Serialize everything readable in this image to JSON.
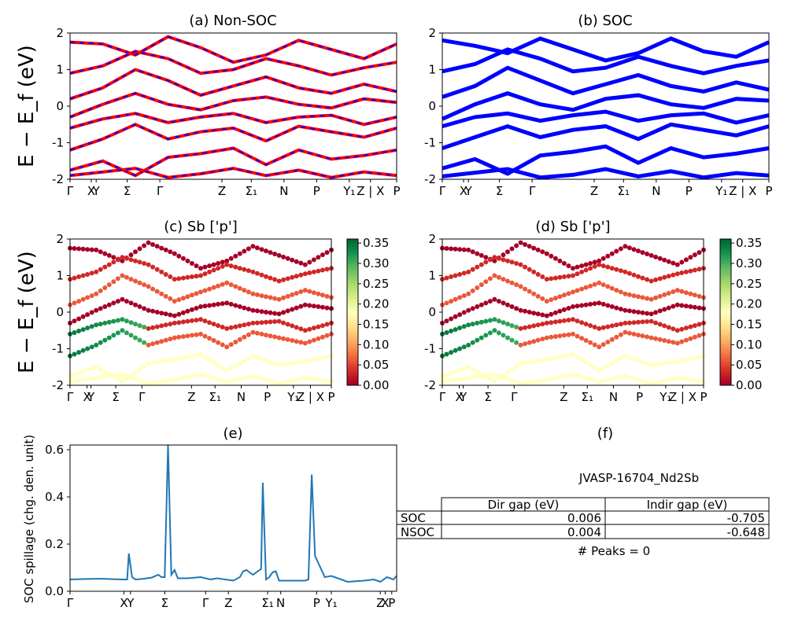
{
  "figure": {
    "id_label": "JVASP-16704_Nd2Sb",
    "peaks_text": "# Peaks = 0"
  },
  "colors": {
    "red": "#ff0000",
    "blue": "#0000ff",
    "spillage": "#1f77b4",
    "cmap": [
      "#a50026",
      "#d73027",
      "#f46d43",
      "#fdae61",
      "#fee08b",
      "#ffffbf",
      "#d9ef8b",
      "#a6d96a",
      "#66bd63",
      "#1a9850",
      "#006837"
    ]
  },
  "chart_data": [
    {
      "type": "line",
      "panel": "a",
      "title": "(a) Non-SOC",
      "ylabel": "E − E_f (eV)",
      "ylim": [
        -2,
        2
      ],
      "yticks": [
        -2,
        -1,
        0,
        1,
        2
      ],
      "kpath_labels": [
        "Γ",
        "X",
        "Y",
        "Σ",
        "Γ",
        "Z",
        "Σ₁",
        "N",
        "P",
        "Y₁",
        "Z | X",
        "P"
      ],
      "kpath_positions": [
        0,
        0.065,
        0.08,
        0.175,
        0.275,
        0.465,
        0.555,
        0.655,
        0.755,
        0.855,
        0.92,
        1.0
      ],
      "series": [
        {
          "values": [
            1.75,
            1.7,
            1.4,
            1.9,
            1.6,
            1.2,
            1.4,
            1.8,
            1.55,
            1.3,
            1.7
          ]
        },
        {
          "values": [
            0.9,
            1.1,
            1.5,
            1.3,
            0.9,
            1.0,
            1.3,
            1.1,
            0.85,
            1.05,
            1.2
          ]
        },
        {
          "values": [
            0.2,
            0.5,
            1.0,
            0.7,
            0.3,
            0.55,
            0.8,
            0.5,
            0.35,
            0.6,
            0.4
          ]
        },
        {
          "values": [
            -0.3,
            0.05,
            0.35,
            0.05,
            -0.1,
            0.15,
            0.25,
            0.05,
            -0.05,
            0.2,
            0.1
          ]
        },
        {
          "values": [
            -0.6,
            -0.35,
            -0.2,
            -0.45,
            -0.3,
            -0.2,
            -0.45,
            -0.3,
            -0.25,
            -0.5,
            -0.3
          ]
        },
        {
          "values": [
            -1.2,
            -0.9,
            -0.5,
            -0.9,
            -0.7,
            -0.6,
            -0.95,
            -0.55,
            -0.7,
            -0.85,
            -0.6
          ]
        },
        {
          "values": [
            -1.75,
            -1.5,
            -1.9,
            -1.4,
            -1.3,
            -1.15,
            -1.6,
            -1.2,
            -1.45,
            -1.35,
            -1.2
          ]
        },
        {
          "values": [
            -1.9,
            -1.8,
            -1.7,
            -1.95,
            -1.85,
            -1.7,
            -1.9,
            -1.75,
            -1.95,
            -1.8,
            -1.9
          ]
        }
      ]
    },
    {
      "type": "line",
      "panel": "b",
      "title": "(b) SOC",
      "ylim": [
        -2,
        2
      ],
      "yticks": [
        -2,
        -1,
        0,
        1,
        2
      ],
      "kpath_labels": [
        "Γ",
        "X",
        "Y",
        "Σ",
        "Γ",
        "Z",
        "Σ₁",
        "N",
        "P",
        "Y₁",
        "Z | X",
        "P"
      ],
      "kpath_positions": [
        0,
        0.065,
        0.08,
        0.175,
        0.275,
        0.465,
        0.555,
        0.655,
        0.755,
        0.855,
        0.92,
        1.0
      ],
      "series": [
        {
          "values": [
            1.8,
            1.65,
            1.45,
            1.85,
            1.55,
            1.25,
            1.45,
            1.85,
            1.5,
            1.35,
            1.75
          ]
        },
        {
          "values": [
            0.95,
            1.15,
            1.55,
            1.3,
            0.95,
            1.05,
            1.35,
            1.1,
            0.9,
            1.1,
            1.25
          ]
        },
        {
          "values": [
            0.25,
            0.55,
            1.05,
            0.7,
            0.35,
            0.6,
            0.85,
            0.55,
            0.4,
            0.65,
            0.45
          ]
        },
        {
          "values": [
            -0.35,
            0.05,
            0.35,
            0.05,
            -0.1,
            0.2,
            0.3,
            0.05,
            -0.05,
            0.2,
            0.15
          ]
        },
        {
          "values": [
            -0.55,
            -0.3,
            -0.2,
            -0.4,
            -0.25,
            -0.15,
            -0.4,
            -0.25,
            -0.2,
            -0.45,
            -0.25
          ]
        },
        {
          "values": [
            -1.15,
            -0.85,
            -0.55,
            -0.85,
            -0.65,
            -0.55,
            -0.9,
            -0.5,
            -0.65,
            -0.8,
            -0.55
          ]
        },
        {
          "values": [
            -1.7,
            -1.45,
            -1.85,
            -1.35,
            -1.25,
            -1.1,
            -1.55,
            -1.15,
            -1.4,
            -1.3,
            -1.15
          ]
        },
        {
          "values": [
            -1.92,
            -1.82,
            -1.72,
            -1.95,
            -1.88,
            -1.72,
            -1.92,
            -1.78,
            -1.95,
            -1.83,
            -1.9
          ]
        }
      ]
    },
    {
      "type": "scatter",
      "panel": "c",
      "title": "(c)  Sb ['p']",
      "ylabel": "E − E_f (eV)",
      "ylim": [
        -2,
        2
      ],
      "yticks": [
        -2,
        -1,
        0,
        1,
        2
      ],
      "colorbar": {
        "min": 0.0,
        "max": 0.36,
        "ticks": [
          "0.00",
          "0.05",
          "0.10",
          "0.15",
          "0.20",
          "0.25",
          "0.30",
          "0.35"
        ]
      },
      "kpath_labels": [
        "Γ",
        "X",
        "Y",
        "Σ",
        "Γ",
        "Z",
        "Σ₁",
        "N",
        "P",
        "Y₁",
        "Z | X",
        "P"
      ],
      "kpath_positions": [
        0,
        0.065,
        0.08,
        0.175,
        0.275,
        0.465,
        0.555,
        0.655,
        0.755,
        0.855,
        0.92,
        1.0
      ]
    },
    {
      "type": "scatter",
      "panel": "d",
      "title": "(d) Sb ['p']",
      "ylim": [
        -2,
        2
      ],
      "yticks": [
        -2,
        -1,
        0,
        1,
        2
      ],
      "colorbar": {
        "min": 0.0,
        "max": 0.36,
        "ticks": [
          "0.00",
          "0.05",
          "0.10",
          "0.15",
          "0.20",
          "0.25",
          "0.30",
          "0.35"
        ]
      },
      "kpath_labels": [
        "Γ",
        "X",
        "Y",
        "Σ",
        "Γ",
        "Z",
        "Σ₁",
        "N",
        "P",
        "Y₁",
        "Z | X",
        "P"
      ],
      "kpath_positions": [
        0,
        0.065,
        0.08,
        0.175,
        0.275,
        0.465,
        0.555,
        0.655,
        0.755,
        0.855,
        0.92,
        1.0
      ]
    },
    {
      "type": "line",
      "panel": "e",
      "title": "(e)",
      "ylabel": "SOC spillage (chg. den. unit)",
      "ylim": [
        0,
        0.62
      ],
      "yticks": [
        "0.0",
        "0.2",
        "0.4",
        "0.6"
      ],
      "kpath_labels": [
        "Γ",
        "X",
        "Y",
        "Σ",
        "Γ",
        "Z",
        "Σ₁",
        "N",
        "P",
        "Y₁",
        "Z",
        "X",
        "P"
      ],
      "kpath_positions": [
        0,
        0.165,
        0.185,
        0.29,
        0.415,
        0.485,
        0.605,
        0.645,
        0.755,
        0.8,
        0.95,
        0.965,
        0.985
      ],
      "series": [
        {
          "x": [
            0,
            0.05,
            0.1,
            0.16,
            0.175,
            0.18,
            0.19,
            0.2,
            0.22,
            0.25,
            0.27,
            0.28,
            0.29,
            0.3,
            0.31,
            0.32,
            0.33,
            0.36,
            0.4,
            0.43,
            0.45,
            0.5,
            0.52,
            0.53,
            0.54,
            0.56,
            0.585,
            0.59,
            0.6,
            0.61,
            0.62,
            0.63,
            0.64,
            0.66,
            0.68,
            0.7,
            0.72,
            0.73,
            0.74,
            0.75,
            0.78,
            0.8,
            0.82,
            0.85,
            0.9,
            0.93,
            0.95,
            0.97,
            0.99,
            1.0
          ],
          "y": [
            0.05,
            0.052,
            0.053,
            0.05,
            0.05,
            0.16,
            0.06,
            0.05,
            0.052,
            0.058,
            0.07,
            0.06,
            0.06,
            0.62,
            0.07,
            0.09,
            0.055,
            0.055,
            0.06,
            0.05,
            0.055,
            0.045,
            0.06,
            0.085,
            0.09,
            0.07,
            0.095,
            0.46,
            0.05,
            0.06,
            0.08,
            0.085,
            0.045,
            0.045,
            0.045,
            0.045,
            0.045,
            0.05,
            0.495,
            0.15,
            0.06,
            0.065,
            0.055,
            0.04,
            0.045,
            0.05,
            0.04,
            0.06,
            0.05,
            0.065
          ]
        }
      ]
    }
  ],
  "table": {
    "headers": [
      "",
      "Dir gap (eV)",
      "Indir gap (eV)"
    ],
    "rows": [
      [
        "SOC",
        "0.006",
        "-0.705"
      ],
      [
        "NSOC",
        "0.004",
        "-0.648"
      ]
    ]
  },
  "panel_f_title": "(f)"
}
